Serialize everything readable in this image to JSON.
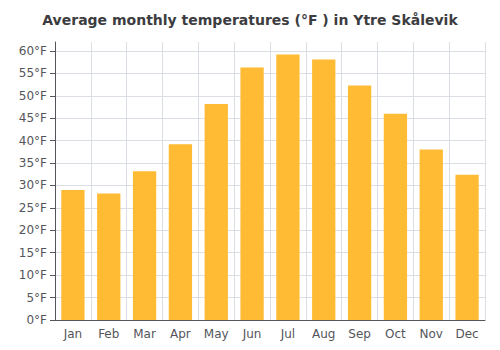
{
  "chart_data": {
    "type": "bar",
    "title": "Average monthly temperatures (°F ) in Ytre Skålevik",
    "categories": [
      "Jan",
      "Feb",
      "Mar",
      "Apr",
      "May",
      "Jun",
      "Jul",
      "Aug",
      "Sep",
      "Oct",
      "Nov",
      "Dec"
    ],
    "values": [
      29.0,
      28.2,
      33.2,
      39.2,
      48.2,
      56.3,
      59.2,
      58.1,
      52.3,
      46.0,
      38.0,
      32.4
    ],
    "color": "#FFBB33",
    "ylim": [
      0,
      62
    ],
    "yticks": [
      {
        "value": 0,
        "label": "0°F"
      },
      {
        "value": 5,
        "label": "5°F"
      },
      {
        "value": 10,
        "label": "10°F"
      },
      {
        "value": 15,
        "label": "15°F"
      },
      {
        "value": 20,
        "label": "20°F"
      },
      {
        "value": 25,
        "label": "25°F"
      },
      {
        "value": 30,
        "label": "30°F"
      },
      {
        "value": 35,
        "label": "35°F"
      },
      {
        "value": 40,
        "label": "40°F"
      },
      {
        "value": 45,
        "label": "45°F"
      },
      {
        "value": 50,
        "label": "50°F"
      },
      {
        "value": 55,
        "label": "55°F"
      },
      {
        "value": 60,
        "label": "60°F"
      }
    ],
    "grid": true
  }
}
